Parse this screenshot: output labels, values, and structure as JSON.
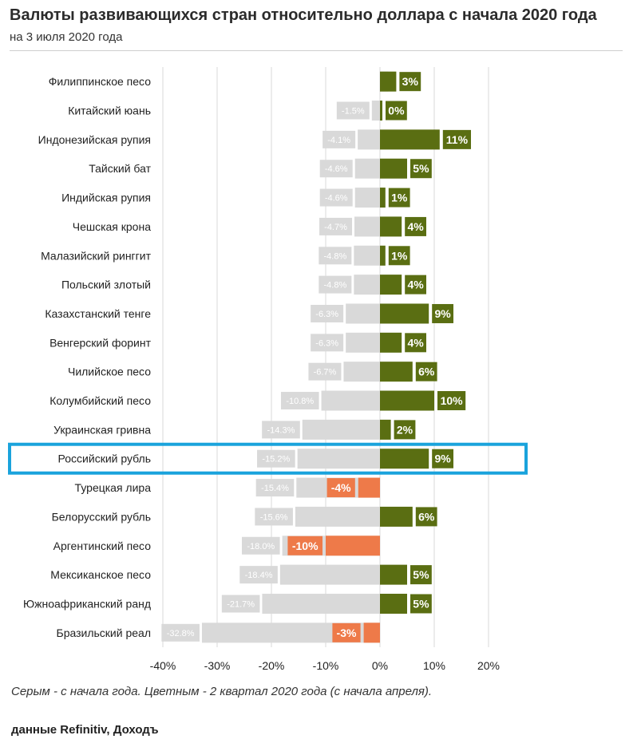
{
  "title": "Валюты развивающихся стран относительно доллара с начала 2020 года",
  "subtitle": "на 3 июля 2020 года",
  "note": "Серым - с начала года. Цветным - 2 квартал 2020 года (с начала апреля).",
  "source": "данные Refinitiv, Доходъ",
  "colors": {
    "ytd": "#d9d9d9",
    "q2_positive": "#5a6e12",
    "q2_negative": "#ee7a49",
    "highlight": "#1aa3dc",
    "grid": "#d9d9d9"
  },
  "chart_data": {
    "type": "bar",
    "orientation": "horizontal",
    "categories": [
      "Филиппинское песо",
      "Китайский юань",
      "Индонезийская рупия",
      "Тайский бат",
      "Индийская рупия",
      "Чешская крона",
      "Малазийский ринггит",
      "Польский злотый",
      "Казахстанский тенге",
      "Венгерский форинт",
      "Чилийское песо",
      "Колумбийский песо",
      "Украинская гривна",
      "Российский рубль",
      "Турецкая лира",
      "Белорусский рубль",
      "Аргентинский песо",
      "Мексиканское песо",
      "Южноафриканский ранд",
      "Бразильский реал"
    ],
    "series": [
      {
        "name": "С начала года",
        "values": [
          1.5,
          -1.5,
          -4.1,
          -4.6,
          -4.6,
          -4.7,
          -4.8,
          -4.8,
          -6.3,
          -6.3,
          -6.7,
          -10.8,
          -14.3,
          -15.2,
          -15.4,
          -15.6,
          -18.0,
          -18.4,
          -21.7,
          -32.8
        ],
        "labels": [
          "",
          "-1.5%",
          "-4.1%",
          "-4.6%",
          "-4.6%",
          "-4.7%",
          "-4.8%",
          "-4.8%",
          "-6.3%",
          "-6.3%",
          "-6.7%",
          "-10.8%",
          "-14.3%",
          "-15.2%",
          "-15.4%",
          "-15.6%",
          "-18.0%",
          "-18.4%",
          "-21.7%",
          "-32.8%"
        ]
      },
      {
        "name": "2 квартал 2020",
        "values": [
          3,
          0,
          11,
          5,
          1,
          4,
          1,
          4,
          9,
          4,
          6,
          10,
          2,
          9,
          -4,
          6,
          -10,
          5,
          5,
          -3
        ],
        "labels": [
          "3%",
          "0%",
          "11%",
          "5%",
          "1%",
          "4%",
          "1%",
          "4%",
          "9%",
          "4%",
          "6%",
          "10%",
          "2%",
          "9%",
          "-4%",
          "6%",
          "-10%",
          "5%",
          "5%",
          "-3%"
        ]
      }
    ],
    "xlim": [
      -40,
      20
    ],
    "xticks": [
      -40,
      -30,
      -20,
      -10,
      0,
      10,
      20
    ],
    "xtick_labels": [
      "-40%",
      "-30%",
      "-20%",
      "-10%",
      "0%",
      "10%",
      "20%"
    ],
    "highlighted_category": "Российский рубль"
  }
}
